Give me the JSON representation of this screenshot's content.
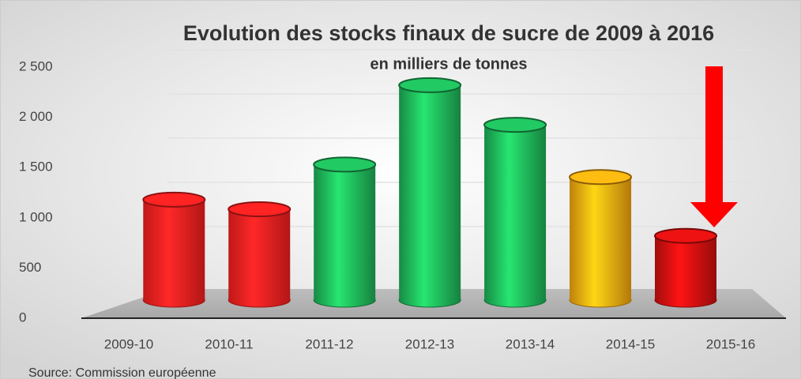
{
  "chart_data": {
    "type": "bar",
    "title": "Evolution des stocks finaux de sucre de 2009 à 2016",
    "subtitle": "en milliers de tonnes",
    "source": "Source: Commission européenne",
    "categories": [
      "2009-10",
      "2010-11",
      "2011-12",
      "2012-13",
      "2013-14",
      "2014-15",
      "2015-16"
    ],
    "values": [
      1180,
      1085,
      1530,
      2320,
      1925,
      1405,
      820
    ],
    "colors": [
      "#ff2020",
      "#ff2020",
      "#1fb85a",
      "#1fb85a",
      "#1fb85a",
      "#ffac10",
      "#d81010"
    ],
    "ylim": [
      0,
      2500
    ],
    "yticks": [
      0,
      500,
      {
        "value": 1000,
        "label": "1 000"
      },
      {
        "value": 1500,
        "label": "1 500"
      },
      {
        "value": 2000,
        "label": "2 000"
      },
      {
        "value": 2500,
        "label": "2 500"
      }
    ],
    "grid": true
  }
}
